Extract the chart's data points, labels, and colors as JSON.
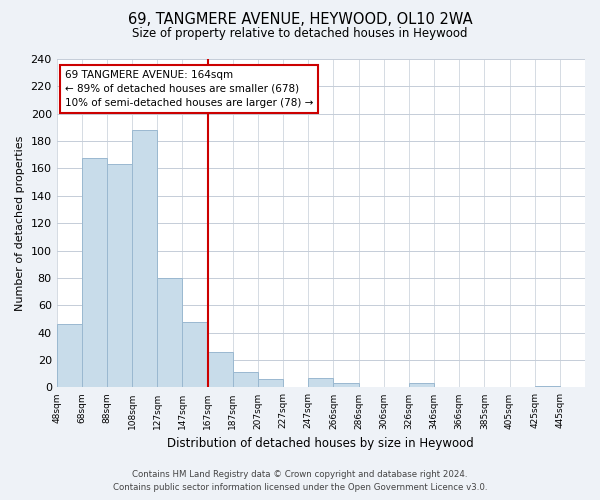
{
  "title": "69, TANGMERE AVENUE, HEYWOOD, OL10 2WA",
  "subtitle": "Size of property relative to detached houses in Heywood",
  "xlabel": "Distribution of detached houses by size in Heywood",
  "ylabel": "Number of detached properties",
  "bar_color": "#c8dcea",
  "bar_edge_color": "#9ab8d0",
  "bins": [
    "48sqm",
    "68sqm",
    "88sqm",
    "108sqm",
    "127sqm",
    "147sqm",
    "167sqm",
    "187sqm",
    "207sqm",
    "227sqm",
    "247sqm",
    "266sqm",
    "286sqm",
    "306sqm",
    "326sqm",
    "346sqm",
    "366sqm",
    "385sqm",
    "405sqm",
    "425sqm",
    "445sqm"
  ],
  "values": [
    46,
    168,
    163,
    188,
    80,
    48,
    26,
    11,
    6,
    0,
    7,
    3,
    0,
    0,
    3,
    0,
    0,
    0,
    0,
    1,
    0
  ],
  "ylim": [
    0,
    240
  ],
  "yticks": [
    0,
    20,
    40,
    60,
    80,
    100,
    120,
    140,
    160,
    180,
    200,
    220,
    240
  ],
  "vline_x_idx": 6,
  "vline_color": "#cc0000",
  "annotation_title": "69 TANGMERE AVENUE: 164sqm",
  "annotation_line1": "← 89% of detached houses are smaller (678)",
  "annotation_line2": "10% of semi-detached houses are larger (78) →",
  "annotation_box_color": "#ffffff",
  "annotation_box_edge": "#cc0000",
  "footer_line1": "Contains HM Land Registry data © Crown copyright and database right 2024.",
  "footer_line2": "Contains public sector information licensed under the Open Government Licence v3.0.",
  "background_color": "#eef2f7",
  "plot_background": "#ffffff",
  "grid_color": "#c5cdd8"
}
